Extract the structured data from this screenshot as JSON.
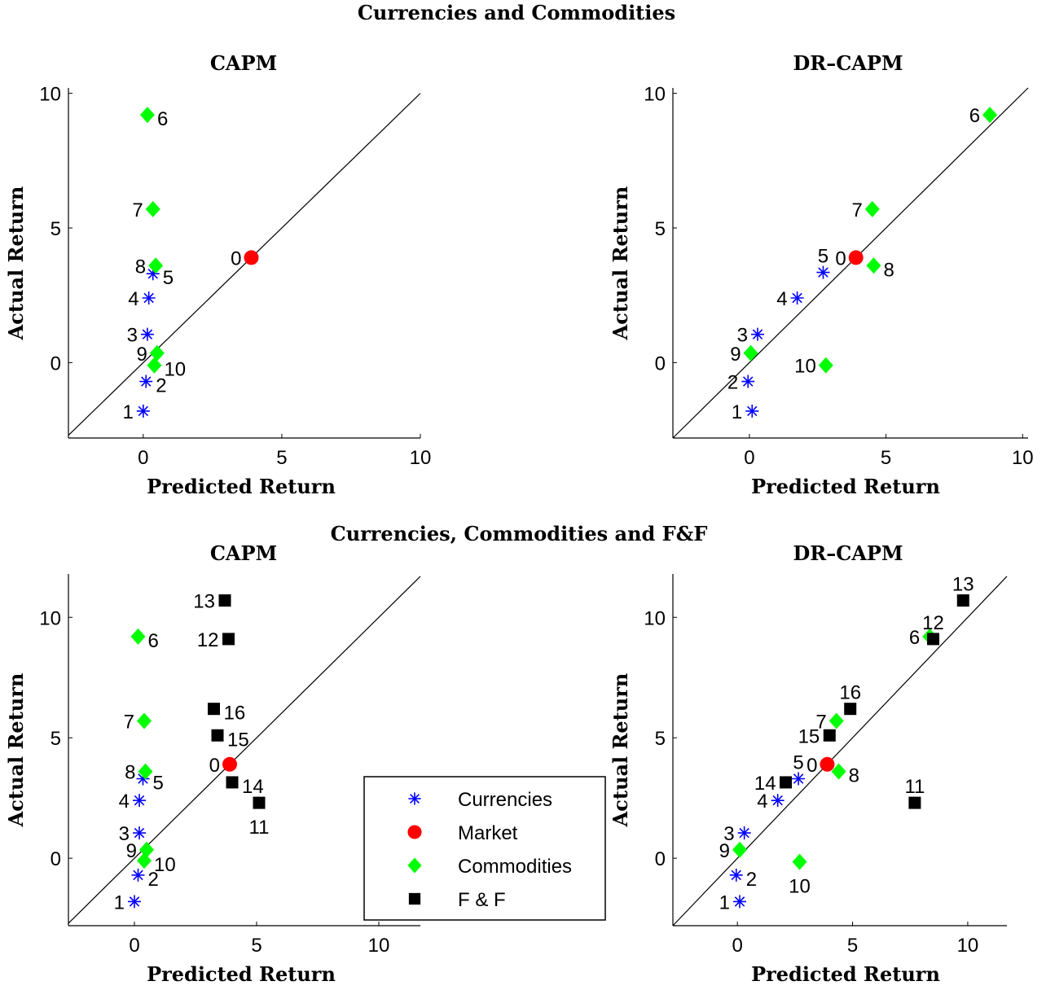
{
  "titles": {
    "top_section": "Currencies and Commodities",
    "bottom_section": "Currencies, Commodities and F&F"
  },
  "legend": {
    "entries": [
      {
        "label": "Currencies",
        "marker": "star",
        "color": "#0000ff"
      },
      {
        "label": "Market",
        "marker": "circle",
        "color": "#ff0000"
      },
      {
        "label": "Commodities",
        "marker": "diamond",
        "color": "#00ff00"
      },
      {
        "label": "F & F",
        "marker": "square",
        "color": "#000000"
      }
    ]
  },
  "colors": {
    "Currencies": "#0000ff",
    "Market": "#ff0000",
    "Commodities": "#00ff00",
    "F & F": "#000000"
  },
  "chart_data": [
    {
      "type": "scatter",
      "title": "CAPM",
      "xlabel": "Predicted Return",
      "ylabel": "Actual Return",
      "xlim": [
        -2.7,
        10
      ],
      "ylim": [
        -2.8,
        10.2
      ],
      "xticks": [
        0,
        5,
        10
      ],
      "yticks": [
        0,
        5,
        10
      ],
      "reference_line": "45-degree",
      "points": [
        {
          "label": "1",
          "group": "Currencies",
          "x": 0.0,
          "y": -1.8,
          "label_side": "left"
        },
        {
          "label": "2",
          "group": "Currencies",
          "x": 0.1,
          "y": -0.7,
          "label_side": "right"
        },
        {
          "label": "3",
          "group": "Currencies",
          "x": 0.15,
          "y": 1.05,
          "label_side": "left"
        },
        {
          "label": "4",
          "group": "Currencies",
          "x": 0.2,
          "y": 2.4,
          "label_side": "left"
        },
        {
          "label": "5",
          "group": "Currencies",
          "x": 0.35,
          "y": 3.3,
          "label_side": "right"
        },
        {
          "label": "0",
          "group": "Market",
          "x": 3.9,
          "y": 3.9,
          "label_side": "left"
        },
        {
          "label": "6",
          "group": "Commodities",
          "x": 0.15,
          "y": 9.2,
          "label_side": "right"
        },
        {
          "label": "7",
          "group": "Commodities",
          "x": 0.35,
          "y": 5.7,
          "label_side": "left"
        },
        {
          "label": "8",
          "group": "Commodities",
          "x": 0.45,
          "y": 3.6,
          "label_side": "left"
        },
        {
          "label": "9",
          "group": "Commodities",
          "x": 0.5,
          "y": 0.35,
          "label_side": "left"
        },
        {
          "label": "10",
          "group": "Commodities",
          "x": 0.4,
          "y": -0.1,
          "label_side": "right"
        }
      ]
    },
    {
      "type": "scatter",
      "title": "DR–CAPM",
      "xlabel": "Predicted Return",
      "ylabel": "Actual Return",
      "xlim": [
        -2.8,
        10.2
      ],
      "ylim": [
        -2.8,
        10.2
      ],
      "xticks": [
        0,
        5,
        10
      ],
      "yticks": [
        0,
        5,
        10
      ],
      "reference_line": "45-degree",
      "points": [
        {
          "label": "1",
          "group": "Currencies",
          "x": 0.1,
          "y": -1.8,
          "label_side": "left"
        },
        {
          "label": "2",
          "group": "Currencies",
          "x": -0.05,
          "y": -0.7,
          "label_side": "left"
        },
        {
          "label": "3",
          "group": "Currencies",
          "x": 0.3,
          "y": 1.05,
          "label_side": "left"
        },
        {
          "label": "4",
          "group": "Currencies",
          "x": 1.75,
          "y": 2.4,
          "label_side": "left"
        },
        {
          "label": "5",
          "group": "Currencies",
          "x": 2.7,
          "y": 3.35,
          "label_side": "above"
        },
        {
          "label": "0",
          "group": "Market",
          "x": 3.9,
          "y": 3.9,
          "label_side": "left"
        },
        {
          "label": "6",
          "group": "Commodities",
          "x": 8.8,
          "y": 9.2,
          "label_side": "left"
        },
        {
          "label": "7",
          "group": "Commodities",
          "x": 4.5,
          "y": 5.7,
          "label_side": "left"
        },
        {
          "label": "8",
          "group": "Commodities",
          "x": 4.55,
          "y": 3.6,
          "label_side": "right"
        },
        {
          "label": "9",
          "group": "Commodities",
          "x": 0.05,
          "y": 0.35,
          "label_side": "left"
        },
        {
          "label": "10",
          "group": "Commodities",
          "x": 2.8,
          "y": -0.1,
          "label_side": "left"
        }
      ]
    },
    {
      "type": "scatter",
      "title": "CAPM",
      "xlabel": "Predicted Return",
      "ylabel": "Actual Return",
      "xlim": [
        -2.7,
        11.7
      ],
      "ylim": [
        -2.8,
        11.8
      ],
      "xticks": [
        0,
        5,
        10
      ],
      "yticks": [
        0,
        5,
        10
      ],
      "reference_line": "45-degree",
      "points": [
        {
          "label": "1",
          "group": "Currencies",
          "x": 0.0,
          "y": -1.8,
          "label_side": "left"
        },
        {
          "label": "2",
          "group": "Currencies",
          "x": 0.15,
          "y": -0.7,
          "label_side": "right"
        },
        {
          "label": "3",
          "group": "Currencies",
          "x": 0.2,
          "y": 1.05,
          "label_side": "left"
        },
        {
          "label": "4",
          "group": "Currencies",
          "x": 0.2,
          "y": 2.4,
          "label_side": "left"
        },
        {
          "label": "5",
          "group": "Currencies",
          "x": 0.35,
          "y": 3.3,
          "label_side": "right"
        },
        {
          "label": "0",
          "group": "Market",
          "x": 3.9,
          "y": 3.9,
          "label_side": "left"
        },
        {
          "label": "6",
          "group": "Commodities",
          "x": 0.15,
          "y": 9.2,
          "label_side": "right"
        },
        {
          "label": "7",
          "group": "Commodities",
          "x": 0.4,
          "y": 5.7,
          "label_side": "left"
        },
        {
          "label": "8",
          "group": "Commodities",
          "x": 0.45,
          "y": 3.6,
          "label_side": "left"
        },
        {
          "label": "9",
          "group": "Commodities",
          "x": 0.5,
          "y": 0.35,
          "label_side": "left"
        },
        {
          "label": "10",
          "group": "Commodities",
          "x": 0.4,
          "y": -0.1,
          "label_side": "right"
        },
        {
          "label": "11",
          "group": "F & F",
          "x": 5.1,
          "y": 2.3,
          "label_side": "below"
        },
        {
          "label": "12",
          "group": "F & F",
          "x": 3.85,
          "y": 9.1,
          "label_side": "left"
        },
        {
          "label": "13",
          "group": "F & F",
          "x": 3.7,
          "y": 10.7,
          "label_side": "left"
        },
        {
          "label": "14",
          "group": "F & F",
          "x": 4.0,
          "y": 3.15,
          "label_side": "right"
        },
        {
          "label": "15",
          "group": "F & F",
          "x": 3.4,
          "y": 5.1,
          "label_side": "right"
        },
        {
          "label": "16",
          "group": "F & F",
          "x": 3.25,
          "y": 6.2,
          "label_side": "right"
        }
      ]
    },
    {
      "type": "scatter",
      "title": "DR–CAPM",
      "xlabel": "Predicted Return",
      "ylabel": "Actual Return",
      "xlim": [
        -2.8,
        11.7
      ],
      "ylim": [
        -2.8,
        11.8
      ],
      "xticks": [
        0,
        5,
        10
      ],
      "yticks": [
        0,
        5,
        10
      ],
      "reference_line": "45-degree",
      "points": [
        {
          "label": "1",
          "group": "Currencies",
          "x": 0.1,
          "y": -1.8,
          "label_side": "left"
        },
        {
          "label": "2",
          "group": "Currencies",
          "x": -0.05,
          "y": -0.7,
          "label_side": "right"
        },
        {
          "label": "3",
          "group": "Currencies",
          "x": 0.3,
          "y": 1.05,
          "label_side": "left"
        },
        {
          "label": "4",
          "group": "Currencies",
          "x": 1.75,
          "y": 2.4,
          "label_side": "left"
        },
        {
          "label": "5",
          "group": "Currencies",
          "x": 2.65,
          "y": 3.3,
          "label_side": "above"
        },
        {
          "label": "0",
          "group": "Market",
          "x": 3.9,
          "y": 3.9,
          "label_side": "left"
        },
        {
          "label": "6",
          "group": "Commodities",
          "x": 8.35,
          "y": 9.2,
          "label_side": "left"
        },
        {
          "label": "7",
          "group": "Commodities",
          "x": 4.3,
          "y": 5.7,
          "label_side": "left"
        },
        {
          "label": "8",
          "group": "Commodities",
          "x": 4.4,
          "y": 3.6,
          "label_side": "right"
        },
        {
          "label": "9",
          "group": "Commodities",
          "x": 0.1,
          "y": 0.35,
          "label_side": "left"
        },
        {
          "label": "10",
          "group": "Commodities",
          "x": 2.7,
          "y": -0.15,
          "label_side": "below"
        },
        {
          "label": "11",
          "group": "F & F",
          "x": 7.7,
          "y": 2.3,
          "label_side": "above"
        },
        {
          "label": "12",
          "group": "F & F",
          "x": 8.5,
          "y": 9.1,
          "label_side": "above"
        },
        {
          "label": "13",
          "group": "F & F",
          "x": 9.8,
          "y": 10.7,
          "label_side": "above"
        },
        {
          "label": "14",
          "group": "F & F",
          "x": 2.1,
          "y": 3.15,
          "label_side": "left"
        },
        {
          "label": "15",
          "group": "F & F",
          "x": 4.0,
          "y": 5.1,
          "label_side": "left"
        },
        {
          "label": "16",
          "group": "F & F",
          "x": 4.9,
          "y": 6.2,
          "label_side": "above"
        }
      ]
    }
  ]
}
